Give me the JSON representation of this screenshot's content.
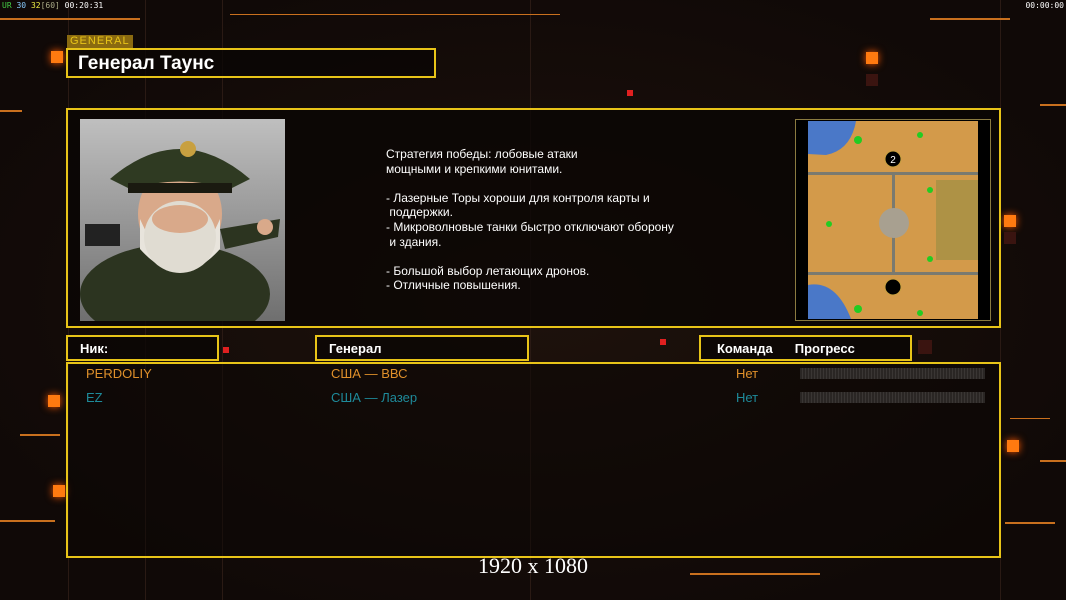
{
  "hud": {
    "left": {
      "a": "UR",
      "b": "30",
      "c": "32",
      "d": "[60]",
      "e": "00:20:31"
    },
    "right": "00:00:00"
  },
  "general": {
    "tag": "GENERAL",
    "name": "Генерал Таунс",
    "description": "Стратегия победы: лобовые атаки\nмощными и крепкими юнитами.\n\n- Лазерные Торы хороши для контроля карты и\n поддержки.\n- Микроволновые танки быстро отключают оборону\n и здания.\n\n- Большой выбор летающих дронов.\n- Отличные повышения.",
    "map_marker": "2"
  },
  "table": {
    "headers": {
      "nick": "Ник:",
      "general": "Генерал",
      "team": "Команда",
      "progress": "Прогресс"
    },
    "rows": [
      {
        "nick": "PERDOLIY",
        "general": "США — ВВС",
        "team": "Нет",
        "progress": 0,
        "color": "#e0902a"
      },
      {
        "nick": "EZ",
        "general": "США — Лазер",
        "team": "Нет",
        "progress": 0,
        "color": "#1e8a9a"
      }
    ]
  },
  "resolution": "1920 x 1080",
  "colors": {
    "frame": "#e8c418",
    "accent": "#ff7a10"
  }
}
